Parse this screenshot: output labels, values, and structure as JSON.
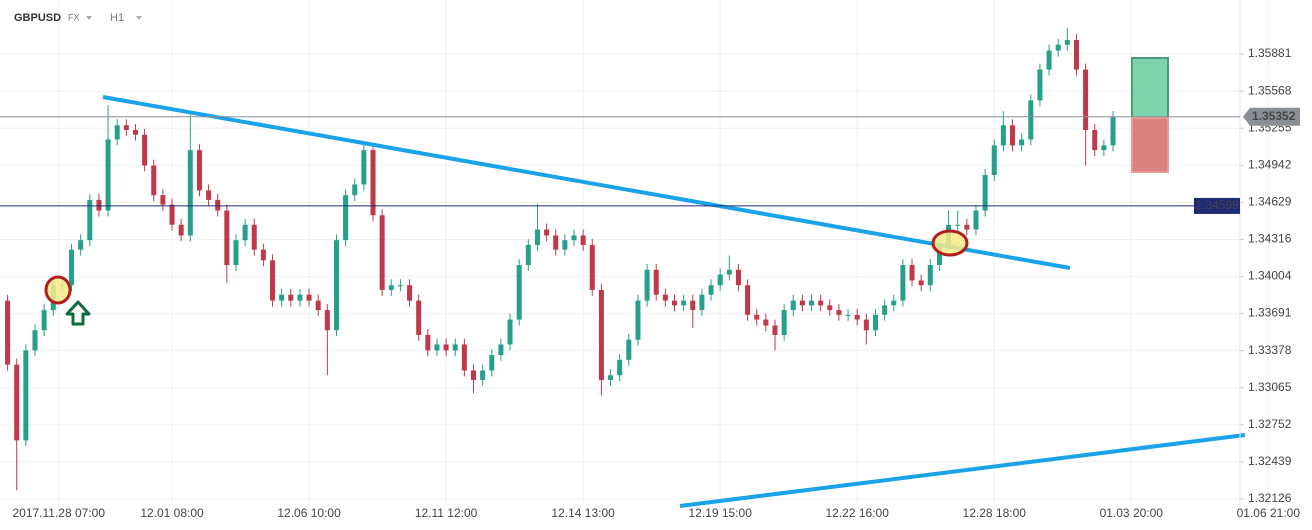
{
  "chart_data": {
    "type": "candlestick",
    "title": "GBPUSD",
    "market": "FX",
    "timeframe": "H1",
    "up_color": "#26a08a",
    "down_color": "#c0394a",
    "ylim": [
      1.32075,
      1.36337
    ],
    "yticks": [
      1.32126,
      1.32439,
      1.32752,
      1.33065,
      1.33378,
      1.33691,
      1.34004,
      1.34316,
      1.34629,
      1.34942,
      1.35255,
      1.35568,
      1.35881
    ],
    "xlim": [
      -0.83,
      134.9
    ],
    "xticks": [
      {
        "value": 5.6,
        "label": "2017.11.28 07:00"
      },
      {
        "value": 18,
        "label": "12.01 08:00"
      },
      {
        "value": 33,
        "label": "12.06 10:00"
      },
      {
        "value": 48,
        "label": "12.11 12:00"
      },
      {
        "value": 63,
        "label": "12.14 13:00"
      },
      {
        "value": 78,
        "label": "12.19 15:00"
      },
      {
        "value": 93,
        "label": "12.22 16:00"
      },
      {
        "value": 108,
        "label": "12.28 18:00"
      },
      {
        "value": 123,
        "label": "01.03 20:00"
      },
      {
        "value": 138,
        "label": "01.06 21:00"
      }
    ],
    "grid": true,
    "price_lines": [
      {
        "value": 1.35352,
        "color": "#8a8f96"
      },
      {
        "value": 1.34599,
        "color": "#1f2a78"
      }
    ],
    "open": [
      1.338,
      1.3326,
      1.3262,
      1.3338,
      1.3355,
      1.3372,
      1.3393,
      1.3393,
      1.3423,
      1.3431,
      1.3465,
      1.3456,
      1.3516,
      1.3528,
      1.3524,
      1.352,
      1.3494,
      1.3469,
      1.3461,
      1.3444,
      1.3435,
      1.3507,
      1.3473,
      1.3465,
      1.3456,
      1.341,
      1.3431,
      1.3444,
      1.3423,
      1.3414,
      1.338,
      1.3385,
      1.338,
      1.3385,
      1.338,
      1.3372,
      1.3355,
      1.3431,
      1.3469,
      1.3478,
      1.3507,
      1.3452,
      1.3389,
      1.3393,
      1.3393,
      1.338,
      1.3351,
      1.3338,
      1.3343,
      1.3338,
      1.3343,
      1.3321,
      1.3313,
      1.3321,
      1.3334,
      1.3343,
      1.3364,
      1.341,
      1.3427,
      1.344,
      1.3435,
      1.3423,
      1.3431,
      1.3435,
      1.3427,
      1.3389,
      1.3313,
      1.3317,
      1.333,
      1.3347,
      1.338,
      1.3406,
      1.3385,
      1.338,
      1.3376,
      1.338,
      1.3372,
      1.3385,
      1.3393,
      1.3402,
      1.3406,
      1.3393,
      1.3368,
      1.3364,
      1.3359,
      1.3351,
      1.3372,
      1.338,
      1.3376,
      1.338,
      1.3376,
      1.3372,
      1.3368,
      1.3368,
      1.3364,
      1.3355,
      1.3368,
      1.3376,
      1.338,
      1.341,
      1.3397,
      1.3393,
      1.341,
      1.3427,
      1.3444,
      1.3444,
      1.344,
      1.3456,
      1.3486,
      1.3511,
      1.3528,
      1.3511,
      1.3516,
      1.3549,
      1.3575,
      1.3591,
      1.3596,
      1.36,
      1.3575,
      1.3524,
      1.3507,
      1.3511
    ],
    "high": [
      1.3385,
      1.3331,
      1.3343,
      1.336,
      1.3377,
      1.3398,
      1.3398,
      1.3428,
      1.3436,
      1.347,
      1.347,
      1.3545,
      1.3533,
      1.3533,
      1.3529,
      1.3525,
      1.3499,
      1.3474,
      1.3466,
      1.3449,
      1.3537,
      1.3512,
      1.3478,
      1.347,
      1.3461,
      1.3436,
      1.3449,
      1.3449,
      1.3428,
      1.3419,
      1.339,
      1.339,
      1.339,
      1.339,
      1.3385,
      1.3377,
      1.3436,
      1.3474,
      1.3483,
      1.3513,
      1.3512,
      1.3457,
      1.3398,
      1.3398,
      1.3398,
      1.3385,
      1.3356,
      1.3348,
      1.3348,
      1.3348,
      1.3348,
      1.3326,
      1.3326,
      1.3339,
      1.3348,
      1.3369,
      1.3415,
      1.3432,
      1.3462,
      1.3445,
      1.344,
      1.3436,
      1.344,
      1.344,
      1.3432,
      1.3394,
      1.3322,
      1.3335,
      1.3352,
      1.3385,
      1.3411,
      1.3411,
      1.339,
      1.3385,
      1.3385,
      1.3385,
      1.339,
      1.3398,
      1.3407,
      1.3418,
      1.3411,
      1.3398,
      1.3373,
      1.3369,
      1.3364,
      1.3377,
      1.3385,
      1.3385,
      1.3385,
      1.3385,
      1.3381,
      1.3377,
      1.3373,
      1.3373,
      1.3369,
      1.3373,
      1.3381,
      1.3385,
      1.3415,
      1.3415,
      1.3402,
      1.3415,
      1.3432,
      1.3456,
      1.3456,
      1.3449,
      1.3461,
      1.3491,
      1.3516,
      1.354,
      1.3533,
      1.3521,
      1.3554,
      1.358,
      1.3596,
      1.3601,
      1.361,
      1.3605,
      1.358,
      1.3529,
      1.3516,
      1.354
    ],
    "low": [
      1.3321,
      1.322,
      1.3257,
      1.3333,
      1.335,
      1.3367,
      1.3388,
      1.3388,
      1.3418,
      1.3426,
      1.3451,
      1.3451,
      1.3511,
      1.3519,
      1.3515,
      1.3489,
      1.3464,
      1.3456,
      1.3439,
      1.343,
      1.343,
      1.3468,
      1.346,
      1.3451,
      1.3395,
      1.3405,
      1.3426,
      1.3418,
      1.3409,
      1.3375,
      1.3375,
      1.3375,
      1.3375,
      1.3375,
      1.3367,
      1.3317,
      1.335,
      1.3426,
      1.3464,
      1.3473,
      1.3447,
      1.3384,
      1.3384,
      1.3388,
      1.3375,
      1.3346,
      1.3333,
      1.3333,
      1.3333,
      1.3333,
      1.3316,
      1.3302,
      1.3308,
      1.3316,
      1.3329,
      1.3338,
      1.3359,
      1.3405,
      1.3422,
      1.343,
      1.3418,
      1.3418,
      1.3426,
      1.3422,
      1.3384,
      1.33,
      1.3308,
      1.3312,
      1.3325,
      1.3342,
      1.3375,
      1.338,
      1.3375,
      1.3371,
      1.3371,
      1.3357,
      1.3367,
      1.338,
      1.3388,
      1.3397,
      1.3388,
      1.3363,
      1.3359,
      1.3354,
      1.3338,
      1.3346,
      1.3367,
      1.3371,
      1.3371,
      1.3371,
      1.3367,
      1.3363,
      1.3363,
      1.3359,
      1.3343,
      1.335,
      1.3363,
      1.3371,
      1.3375,
      1.3392,
      1.3388,
      1.3388,
      1.3405,
      1.3422,
      1.3439,
      1.3435,
      1.3435,
      1.3451,
      1.3481,
      1.3506,
      1.3506,
      1.3506,
      1.3511,
      1.3544,
      1.357,
      1.3586,
      1.3591,
      1.357,
      1.3494,
      1.3502,
      1.3502,
      1.3506
    ],
    "close": [
      1.3326,
      1.3262,
      1.3338,
      1.3355,
      1.3372,
      1.3393,
      1.3393,
      1.3423,
      1.3431,
      1.3465,
      1.3456,
      1.3516,
      1.3528,
      1.3524,
      1.352,
      1.3494,
      1.3469,
      1.3461,
      1.3444,
      1.3435,
      1.3507,
      1.3473,
      1.3465,
      1.3456,
      1.341,
      1.3431,
      1.3444,
      1.3423,
      1.3414,
      1.338,
      1.3385,
      1.338,
      1.3385,
      1.338,
      1.3372,
      1.3355,
      1.3431,
      1.3469,
      1.3478,
      1.3507,
      1.3452,
      1.3389,
      1.3393,
      1.3393,
      1.338,
      1.3351,
      1.3338,
      1.3343,
      1.3338,
      1.3343,
      1.3321,
      1.3313,
      1.3321,
      1.3334,
      1.3343,
      1.3364,
      1.341,
      1.3427,
      1.344,
      1.3435,
      1.3423,
      1.3431,
      1.3435,
      1.3427,
      1.3389,
      1.3313,
      1.3317,
      1.333,
      1.3347,
      1.338,
      1.3406,
      1.3385,
      1.338,
      1.3376,
      1.338,
      1.3372,
      1.3385,
      1.3393,
      1.3402,
      1.3406,
      1.3393,
      1.3368,
      1.3364,
      1.3359,
      1.3351,
      1.3372,
      1.338,
      1.3376,
      1.338,
      1.3376,
      1.3372,
      1.3368,
      1.3368,
      1.3364,
      1.3355,
      1.3368,
      1.3376,
      1.338,
      1.341,
      1.3397,
      1.3393,
      1.341,
      1.3427,
      1.3444,
      1.3444,
      1.344,
      1.3456,
      1.3486,
      1.3511,
      1.3528,
      1.3511,
      1.3516,
      1.3549,
      1.3575,
      1.3591,
      1.3596,
      1.36,
      1.3575,
      1.3524,
      1.3507,
      1.3511,
      1.3535
    ]
  }
}
